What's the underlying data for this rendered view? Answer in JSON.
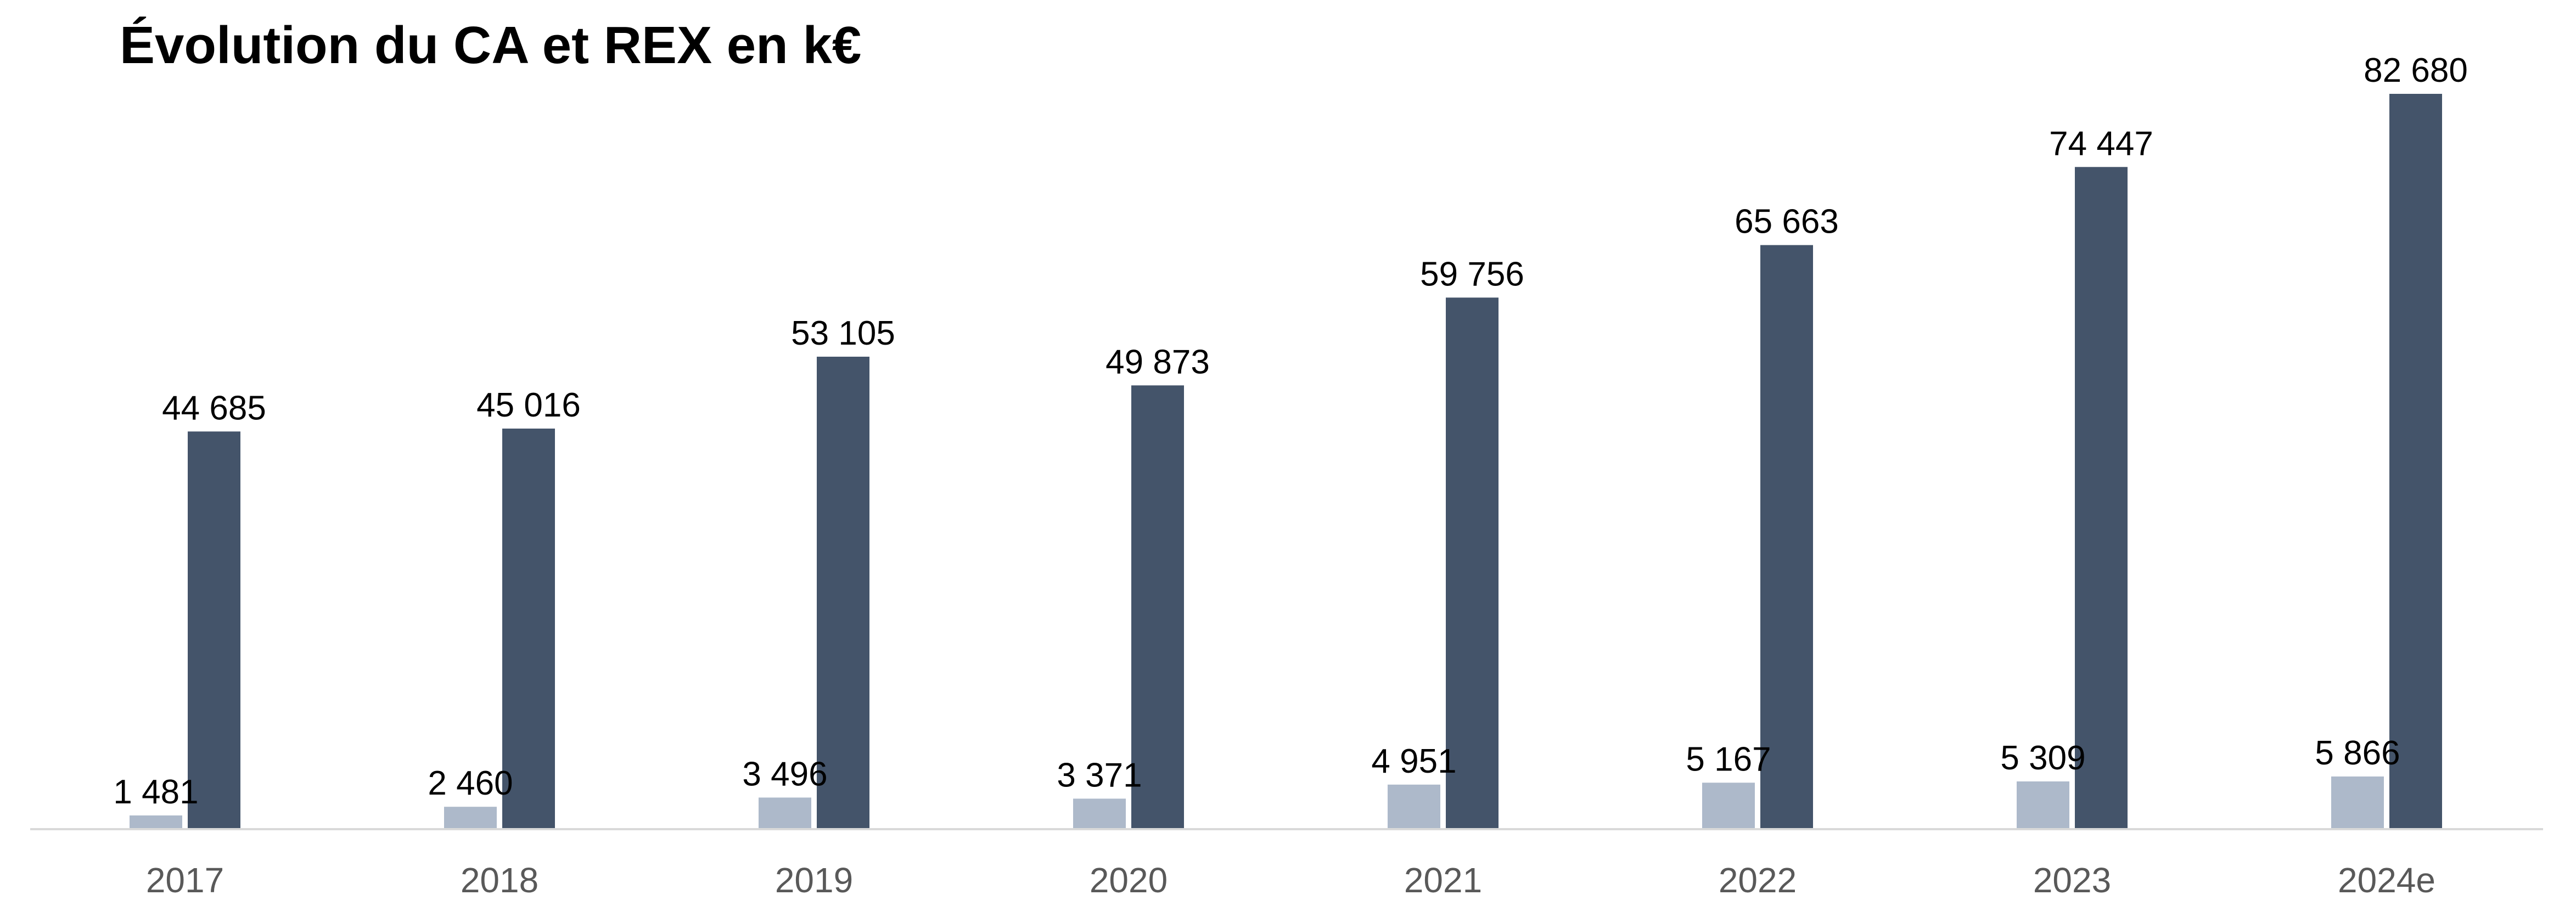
{
  "chart_data": {
    "type": "bar",
    "title": "Évolution du CA et REX en k€",
    "categories": [
      "2017",
      "2018",
      "2019",
      "2020",
      "2021",
      "2022",
      "2023",
      "2024e"
    ],
    "series": [
      {
        "values": [
          1481,
          2460,
          3496,
          3371,
          4951,
          5167,
          5309,
          5866
        ],
        "labels": [
          "1 481",
          "2 460",
          "3 496",
          "3 371",
          "4 951",
          "5 167",
          "5 309",
          "5 866"
        ],
        "color": "#adb9ca"
      },
      {
        "values": [
          44685,
          45016,
          53105,
          49873,
          59756,
          65663,
          74447,
          82680
        ],
        "labels": [
          "44 685",
          "45 016",
          "53 105",
          "49 873",
          "59 756",
          "65 663",
          "74 447",
          "82 680"
        ],
        "color": "#44546a"
      }
    ],
    "xlabel": "",
    "ylabel": "",
    "ylim": [
      0,
      82680
    ],
    "grid": false,
    "legend": "none",
    "axis_color": "#d9d9d9",
    "tick_color": "#595959"
  }
}
